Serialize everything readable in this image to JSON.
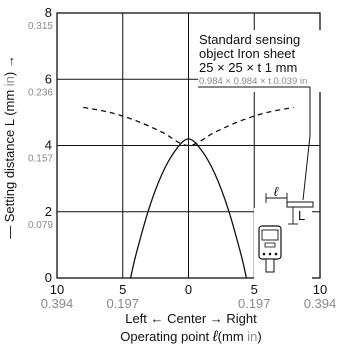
{
  "chart_data": {
    "type": "line",
    "xlim": [
      -10,
      10
    ],
    "ylim": [
      0,
      8
    ],
    "grid": true,
    "x_ticks": [
      {
        "value": -10,
        "mm": "10",
        "in": "0.394"
      },
      {
        "value": -5,
        "mm": "5",
        "in": "0.197"
      },
      {
        "value": 0,
        "mm": "0",
        "in": ""
      },
      {
        "value": 5,
        "mm": "5",
        "in": "0.197"
      },
      {
        "value": 10,
        "mm": "10",
        "in": "0.394"
      }
    ],
    "y_ticks": [
      {
        "value": 0,
        "mm": "0",
        "in": ""
      },
      {
        "value": 2,
        "mm": "2",
        "in": "0.079"
      },
      {
        "value": 4,
        "mm": "4",
        "in": "0.157"
      },
      {
        "value": 6,
        "mm": "6",
        "in": "0.236"
      },
      {
        "value": 8,
        "mm": "8",
        "in": "0.315"
      }
    ],
    "xlabel": {
      "direction_left": "Left",
      "direction_center": "Center",
      "direction_right": "Right",
      "main": "Operating point",
      "symbol": "ℓ",
      "unit_open": "(mm ",
      "unit_in": "in",
      "unit_close": ")"
    },
    "ylabel": {
      "main": "Setting distance L (mm ",
      "unit_in": "in",
      "unit_close": ")"
    },
    "series": [
      {
        "style": "solid",
        "points": [
          [
            -4.4,
            0
          ],
          [
            -4,
            0.7
          ],
          [
            -3,
            2.1
          ],
          [
            -2,
            3.15
          ],
          [
            -1,
            3.85
          ],
          [
            0,
            4.2
          ],
          [
            1,
            3.85
          ],
          [
            2,
            3.15
          ],
          [
            3,
            2.1
          ],
          [
            4,
            0.7
          ],
          [
            4.4,
            0
          ]
        ]
      },
      {
        "style": "dashed",
        "points": [
          [
            -8,
            5.15
          ],
          [
            -6,
            5.0
          ],
          [
            -4,
            4.75
          ],
          [
            -2,
            4.4
          ],
          [
            0,
            4.0
          ],
          [
            2,
            4.4
          ],
          [
            4,
            4.75
          ],
          [
            6,
            5.0
          ],
          [
            8,
            5.15
          ]
        ]
      }
    ],
    "annotation": {
      "line1": "Standard sensing",
      "line2": "object Iron sheet",
      "line3": "25 × 25 × t 1 mm",
      "line4": "0.984 × 0.984 × t 0.039 in"
    },
    "diagram_labels": {
      "l_symbol": "ℓ",
      "L_symbol": "L"
    }
  }
}
